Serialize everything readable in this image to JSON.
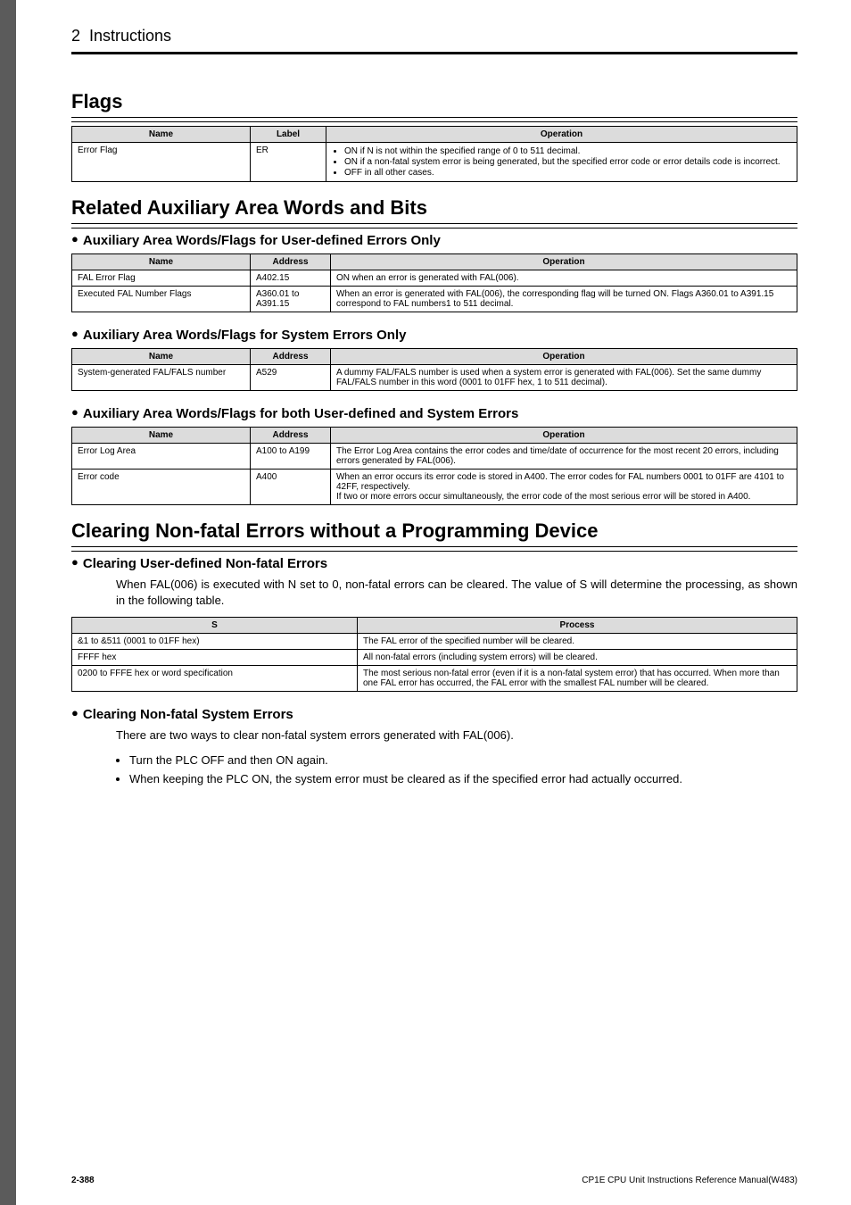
{
  "header": {
    "chapter": "2",
    "title": "Instructions"
  },
  "sections": [
    {
      "type": "h1",
      "text": "Flags"
    },
    {
      "type": "table",
      "id": "flags_table"
    },
    {
      "type": "h1",
      "text": "Related Auxiliary Area Words and Bits"
    },
    {
      "type": "h2",
      "text": "Auxiliary Area Words/Flags for User-defined Errors Only"
    },
    {
      "type": "table",
      "id": "user_errors_table"
    },
    {
      "type": "h2",
      "text": "Auxiliary Area Words/Flags for System Errors Only"
    },
    {
      "type": "table",
      "id": "system_errors_table"
    },
    {
      "type": "h2",
      "text": "Auxiliary Area Words/Flags for both User-defined and System Errors"
    },
    {
      "type": "table",
      "id": "both_errors_table"
    },
    {
      "type": "h1",
      "text": "Clearing Non-fatal Errors without a Programming Device"
    },
    {
      "type": "h2",
      "text": "Clearing User-defined Non-fatal Errors"
    },
    {
      "type": "p",
      "text": "When FAL(006) is executed with N set to 0, non-fatal errors can be cleared. The value of S will determine the processing, as shown in the following table."
    },
    {
      "type": "table",
      "id": "clearing_table"
    },
    {
      "type": "h2",
      "text": "Clearing Non-fatal System Errors"
    },
    {
      "type": "p",
      "text": "There are two ways to clear non-fatal system errors generated with FAL(006)."
    },
    {
      "type": "ul",
      "items": [
        "Turn the PLC OFF and then ON again.",
        "When keeping the PLC ON, the system error must be cleared as if the specified error had actually occurred."
      ]
    }
  ],
  "tables": {
    "flags_table": {
      "columns": [
        {
          "label": "Name",
          "class": "col-name"
        },
        {
          "label": "Label",
          "class": "col-label"
        },
        {
          "label": "Operation",
          "class": ""
        }
      ],
      "rows": [
        {
          "cells": [
            {
              "text": "Error Flag"
            },
            {
              "text": "ER"
            },
            {
              "list": [
                "ON if N is not within the specified range of 0 to 511 decimal.",
                "ON if a non-fatal system error is being generated, but the specified error code or error details code is incorrect.",
                "OFF in all other cases."
              ]
            }
          ]
        }
      ]
    },
    "user_errors_table": {
      "columns": [
        {
          "label": "Name",
          "class": "col-name"
        },
        {
          "label": "Address",
          "class": "col-addr"
        },
        {
          "label": "Operation",
          "class": ""
        }
      ],
      "rows": [
        {
          "cells": [
            {
              "text": "FAL Error Flag"
            },
            {
              "text": "A402.15"
            },
            {
              "text": "ON when an error is generated with FAL(006)."
            }
          ]
        },
        {
          "cells": [
            {
              "text": "Executed FAL Number Flags"
            },
            {
              "text": "A360.01 to A391.15"
            },
            {
              "text": "When an error is generated with FAL(006), the corresponding flag will be turned ON. Flags A360.01 to A391.15 correspond to FAL numbers1 to 511 decimal."
            }
          ]
        }
      ]
    },
    "system_errors_table": {
      "columns": [
        {
          "label": "Name",
          "class": "col-name"
        },
        {
          "label": "Address",
          "class": "col-addr"
        },
        {
          "label": "Operation",
          "class": ""
        }
      ],
      "rows": [
        {
          "cells": [
            {
              "text": "System-generated FAL/FALS number"
            },
            {
              "text": "A529"
            },
            {
              "text": "A dummy FAL/FALS number is used when a system error is generated with FAL(006). Set the same dummy FAL/FALS number in this word (0001 to 01FF hex, 1 to 511 decimal)."
            }
          ]
        }
      ]
    },
    "both_errors_table": {
      "columns": [
        {
          "label": "Name",
          "class": "col-name"
        },
        {
          "label": "Address",
          "class": "col-addr"
        },
        {
          "label": "Operation",
          "class": ""
        }
      ],
      "rows": [
        {
          "cells": [
            {
              "text": "Error Log Area"
            },
            {
              "text": "A100 to A199"
            },
            {
              "text": "The Error Log Area contains the error codes and time/date of occurrence for the most recent 20 errors, including errors generated by FAL(006)."
            }
          ]
        },
        {
          "cells": [
            {
              "text": "Error code"
            },
            {
              "text": "A400"
            },
            {
              "text": "When an error occurs its error code is stored in A400. The error codes for FAL numbers 0001 to 01FF are 4101 to 42FF, respectively.\nIf two or more errors occur simultaneously, the error code of the most serious error will be stored in A400."
            }
          ]
        }
      ]
    },
    "clearing_table": {
      "columns": [
        {
          "label": "S",
          "class": "col-s"
        },
        {
          "label": "Process",
          "class": ""
        }
      ],
      "rows": [
        {
          "cells": [
            {
              "text": "&1 to &511 (0001 to 01FF hex)"
            },
            {
              "text": "The FAL error of the specified number will be cleared."
            }
          ]
        },
        {
          "cells": [
            {
              "text": "FFFF hex"
            },
            {
              "text": "All non-fatal errors (including system errors) will be cleared."
            }
          ]
        },
        {
          "cells": [
            {
              "text": "0200 to FFFE hex or word specification"
            },
            {
              "text": "The most serious non-fatal error (even if it is a non-fatal system error) that has occurred. When more than one FAL error has occurred, the FAL error with the smallest FAL number will be cleared."
            }
          ]
        }
      ]
    }
  },
  "footer": {
    "page": "2-388",
    "manual": "CP1E CPU Unit Instructions Reference Manual(W483)"
  }
}
